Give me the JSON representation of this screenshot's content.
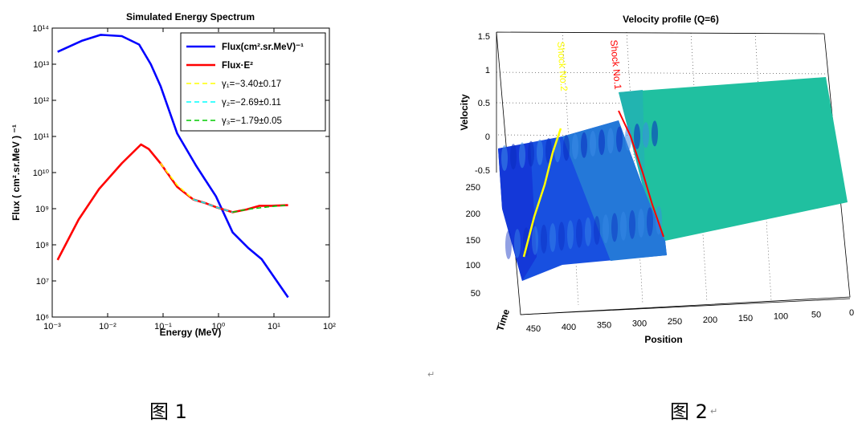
{
  "chart_data": [
    {
      "type": "line",
      "title": "Simulated Energy Spectrum",
      "xlabel": "Energy (MeV)",
      "ylabel": "Flux ( cm².sr.MeV ) ⁻¹",
      "xscale": "log",
      "yscale": "log",
      "xlim": [
        0.001,
        100
      ],
      "ylim": [
        1000000,
        100000000000000
      ],
      "xticks": [
        "10⁻³",
        "10⁻²",
        "10⁻¹",
        "10⁰",
        "10¹",
        "10²"
      ],
      "yticks": [
        "10⁶",
        "10⁷",
        "10⁸",
        "10⁹",
        "10¹⁰",
        "10¹¹",
        "10¹²",
        "10¹³",
        "10¹⁴"
      ],
      "legend_position": "top-right",
      "series": [
        {
          "name": "Flux(cm².sr.MeV)⁻¹",
          "color": "#0000ff",
          "style": "solid",
          "x": [
            0.00125,
            0.0035,
            0.0075,
            0.018,
            0.037,
            0.06,
            0.09,
            0.18,
            0.4,
            0.9,
            1.8,
            3.5,
            6,
            18
          ],
          "y": [
            22000000000000.0,
            45000000000000.0,
            65000000000000.0,
            60000000000000.0,
            35000000000000.0,
            10000000000000.0,
            2500000000000.0,
            120000000000.0,
            15000000000.0,
            2200000000.0,
            220000000.0,
            80000000.0,
            40000000.0,
            3500000.0
          ]
        },
        {
          "name": "Flux·E²",
          "color": "#ff0000",
          "style": "solid",
          "x": [
            0.00125,
            0.003,
            0.007,
            0.018,
            0.04,
            0.055,
            0.09,
            0.18,
            0.35,
            0.6,
            0.9,
            1.8,
            3.2,
            5.5,
            9,
            18
          ],
          "y": [
            38000000.0,
            500000000.0,
            3500000000.0,
            18000000000.0,
            60000000000.0,
            45000000000.0,
            18000000000.0,
            4000000000.0,
            1800000000.0,
            1400000000.0,
            1100000000.0,
            800000000.0,
            950000000.0,
            1200000000.0,
            1200000000.0,
            1250000000.0
          ]
        },
        {
          "name": "γ₁=−3.40±0.17",
          "color": "#ffff00",
          "style": "dashed",
          "x": [
            0.09,
            0.18,
            0.35
          ],
          "y": [
            18000000000.0,
            4500000000.0,
            1800000000.0
          ]
        },
        {
          "name": "γ₂=−2.69±0.11",
          "color": "#00ffff",
          "style": "dashed",
          "x": [
            0.35,
            0.6,
            0.9,
            1.8
          ],
          "y": [
            1800000000.0,
            1400000000.0,
            1100000000.0,
            800000000.0
          ]
        },
        {
          "name": "γ₃=−1.79±0.05",
          "color": "#00cc00",
          "style": "dashed",
          "x": [
            1.8,
            3.2,
            5.5,
            9,
            18
          ],
          "y": [
            800000000.0,
            950000000.0,
            1050000000.0,
            1150000000.0,
            1250000000.0
          ]
        }
      ]
    },
    {
      "type": "surface",
      "title": "Velocity profile (Q=6)",
      "xlabel": "Position",
      "ylabel": "Time",
      "zlabel": "Velocity",
      "xticks": [
        "450",
        "400",
        "350",
        "300",
        "250",
        "200",
        "150",
        "100",
        "50",
        "0"
      ],
      "yticks": [
        "50",
        "100",
        "150",
        "200",
        "250"
      ],
      "zticks": [
        "-0.5",
        "0",
        "0.5",
        "1",
        "1.5"
      ],
      "colors": {
        "low": "#1040e0",
        "high": "#10c0a0"
      },
      "annotations": [
        {
          "text": "Shock No.1",
          "color": "#ff0000"
        },
        {
          "text": "Shock No.2",
          "color": "#ffff00"
        }
      ]
    }
  ],
  "captions": {
    "fig1": "图 1",
    "fig2": "图 2",
    "para_mark": "↵"
  }
}
